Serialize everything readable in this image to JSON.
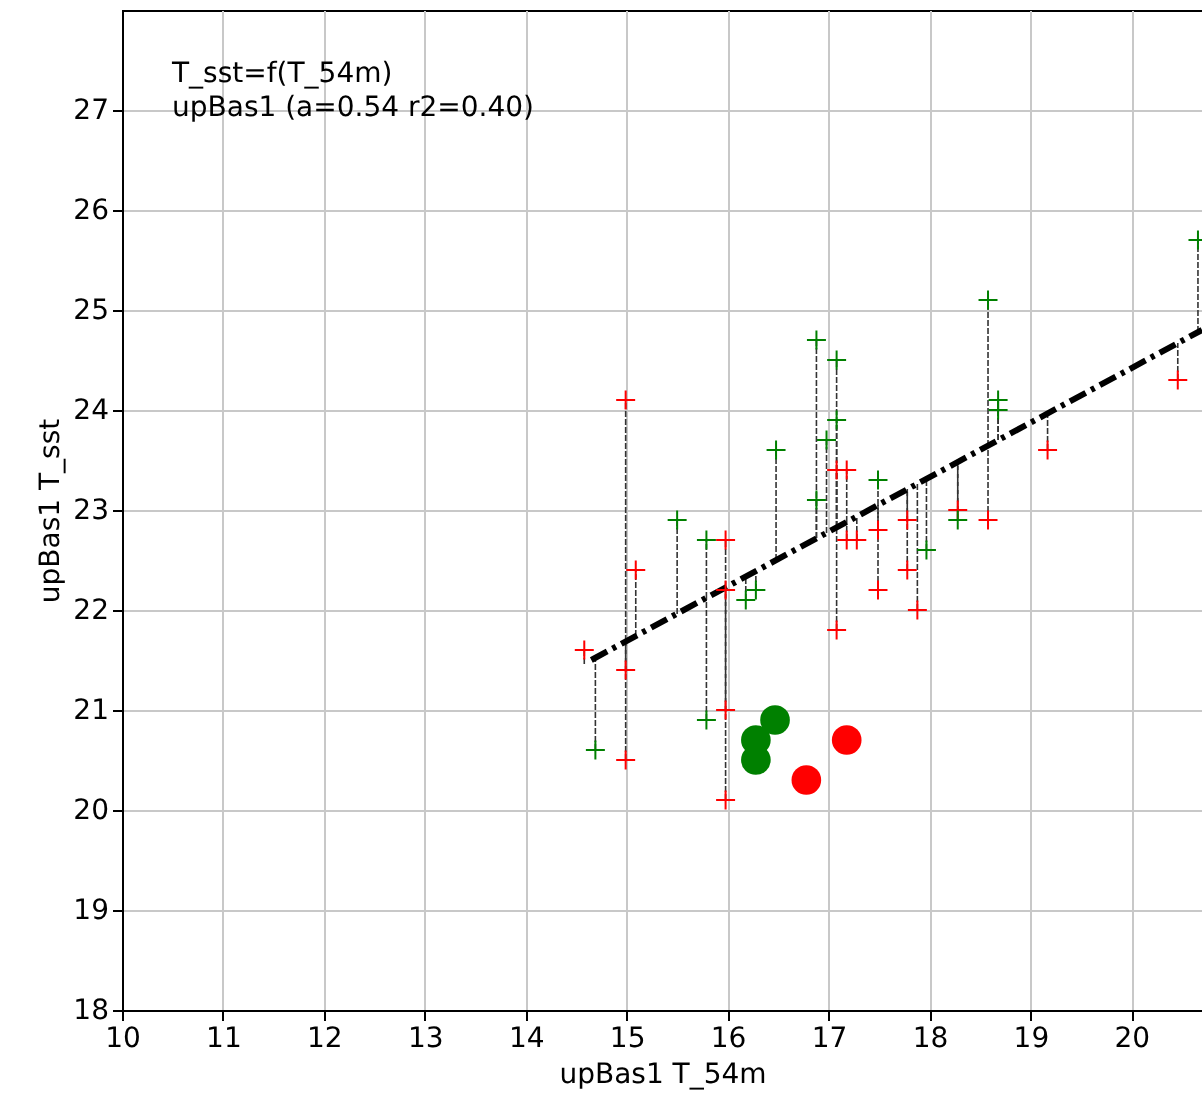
{
  "chart_data": {
    "type": "scatter",
    "xlabel": "upBas1 T_54m",
    "ylabel": "upBas1 T_sst",
    "annotations": [
      "T_sst=f(T_54m)",
      "upBas1 (a=0.54 r2=0.40)"
    ],
    "xlim": [
      10,
      20.7
    ],
    "ylim": [
      18,
      28
    ],
    "xticks": [
      10,
      11,
      12,
      13,
      14,
      15,
      16,
      17,
      18,
      19,
      20
    ],
    "yticks": [
      18,
      19,
      20,
      21,
      22,
      23,
      24,
      25,
      26,
      27
    ],
    "grid": true,
    "series": [
      {
        "marker": "cross",
        "color": "#ff0000",
        "x": [
          14.58,
          14.99,
          14.99,
          14.99,
          15.09,
          15.98,
          15.98,
          15.98,
          15.98,
          17.08,
          17.18,
          17.18,
          17.28,
          17.08,
          17.49,
          17.49,
          17.78,
          17.78,
          17.88,
          18.28,
          18.58,
          19.17,
          20.46
        ],
        "values": [
          21.6,
          24.1,
          21.4,
          20.5,
          22.4,
          22.7,
          22.2,
          21.0,
          20.1,
          23.4,
          23.4,
          22.7,
          22.7,
          21.8,
          22.8,
          22.2,
          22.9,
          22.4,
          22.0,
          23.0,
          22.9,
          23.6,
          24.3
        ],
        "errors": [
          [
            21.46,
            21.6
          ],
          [
            21.69,
            24.1
          ],
          [
            21.4,
            21.69
          ],
          [
            20.5,
            21.69
          ],
          [
            21.74,
            22.4
          ],
          [
            22.23,
            22.7
          ],
          [
            22.2,
            22.23
          ],
          [
            21.0,
            22.23
          ],
          [
            20.1,
            22.23
          ],
          [
            22.83,
            23.4
          ],
          [
            22.88,
            23.4
          ],
          [
            22.7,
            22.88
          ],
          [
            22.7,
            22.93
          ],
          [
            21.8,
            22.83
          ],
          [
            22.8,
            23.05
          ],
          [
            22.2,
            23.05
          ],
          [
            22.9,
            23.21
          ],
          [
            22.4,
            23.21
          ],
          [
            22.0,
            23.26
          ],
          [
            23.0,
            23.48
          ],
          [
            22.9,
            23.64
          ],
          [
            23.6,
            23.97
          ],
          [
            24.3,
            24.67
          ]
        ]
      },
      {
        "marker": "cross",
        "color": "#008000",
        "x": [
          14.69,
          15.5,
          15.79,
          15.79,
          16.18,
          16.28,
          16.48,
          16.88,
          16.88,
          16.98,
          17.08,
          17.08,
          17.49,
          17.97,
          18.28,
          18.58,
          18.68,
          18.68,
          20.66
        ],
        "values": [
          20.6,
          22.9,
          22.7,
          20.9,
          22.1,
          22.2,
          23.6,
          23.1,
          24.7,
          23.7,
          23.9,
          24.5,
          23.3,
          22.6,
          22.9,
          25.1,
          24.1,
          24.0,
          25.7
        ],
        "errors": [
          [
            20.6,
            21.52
          ],
          [
            21.96,
            22.9
          ],
          [
            22.12,
            22.7
          ],
          [
            20.9,
            22.12
          ],
          [
            22.1,
            22.33
          ],
          [
            22.2,
            22.39
          ],
          [
            22.5,
            23.6
          ],
          [
            22.72,
            23.1
          ],
          [
            22.72,
            24.7
          ],
          [
            22.77,
            23.7
          ],
          [
            22.83,
            23.9
          ],
          [
            22.83,
            24.5
          ],
          [
            23.05,
            23.3
          ],
          [
            22.6,
            23.31
          ],
          [
            22.9,
            23.48
          ],
          [
            23.64,
            25.1
          ],
          [
            23.7,
            24.1
          ],
          [
            23.7,
            24.0
          ],
          [
            24.78,
            25.7
          ]
        ]
      },
      {
        "type": "line",
        "line_style": "dashed",
        "color": "#000000",
        "x": [
          14.65,
          20.7
        ],
        "values": [
          21.5,
          24.8
        ]
      },
      {
        "marker": "circle",
        "color": "#008000",
        "x": [
          16.28,
          16.28,
          16.47
        ],
        "values": [
          20.7,
          20.5,
          20.9
        ]
      },
      {
        "marker": "circle",
        "color": "#ff0000",
        "x": [
          16.78,
          17.18
        ],
        "values": [
          20.3,
          20.7
        ]
      }
    ]
  }
}
